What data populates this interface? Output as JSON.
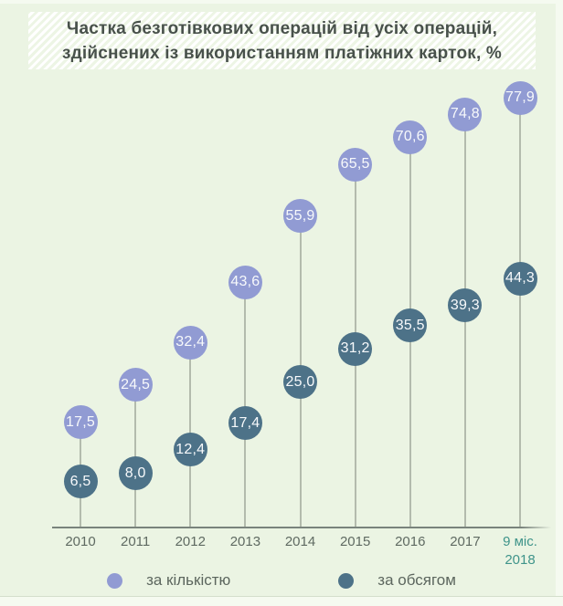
{
  "title": {
    "line1": "Частка безготівкових операцій від усіх операцій,",
    "line2": "здійснених із використанням платіжних карток, %"
  },
  "chart_data": {
    "type": "lollipop",
    "title": "Частка безготівкових операцій від усіх операцій, здійснених із використанням платіжних карток, %",
    "categories": [
      "2010",
      "2011",
      "2012",
      "2013",
      "2014",
      "2015",
      "2016",
      "2017",
      "9 міс. 2018"
    ],
    "x_labels": [
      {
        "lines": [
          "2010"
        ],
        "highlight": false
      },
      {
        "lines": [
          "2011"
        ],
        "highlight": false
      },
      {
        "lines": [
          "2012"
        ],
        "highlight": false
      },
      {
        "lines": [
          "2013"
        ],
        "highlight": false
      },
      {
        "lines": [
          "2014"
        ],
        "highlight": false
      },
      {
        "lines": [
          "2015"
        ],
        "highlight": false
      },
      {
        "lines": [
          "2016"
        ],
        "highlight": false
      },
      {
        "lines": [
          "2017"
        ],
        "highlight": false
      },
      {
        "lines": [
          "9 міс.",
          "2018"
        ],
        "highlight": true
      }
    ],
    "series": [
      {
        "name": "за кількістю",
        "color": "#919bd3",
        "values": [
          17.5,
          24.5,
          32.4,
          43.6,
          55.9,
          65.5,
          70.6,
          74.8,
          77.9
        ],
        "labels": [
          "17,5",
          "24,5",
          "32,4",
          "43,6",
          "55,9",
          "65,5",
          "70,6",
          "74,8",
          "77,9"
        ]
      },
      {
        "name": "за обсягом",
        "color": "#4d7288",
        "values": [
          6.5,
          8.0,
          12.4,
          17.4,
          25.0,
          31.2,
          35.5,
          39.3,
          44.3
        ],
        "labels": [
          "6,5",
          "8,0",
          "12,4",
          "17,4",
          "25,0",
          "31,2",
          "35,5",
          "39,3",
          "44,3"
        ]
      }
    ],
    "ylim": [
      0,
      85
    ],
    "grid": false,
    "decimal_separator": ",",
    "legend_position": "bottom",
    "highlight_label_color": "#3f948a"
  },
  "legend": {
    "items": [
      {
        "label": "за кількістю",
        "color": "#919bd3"
      },
      {
        "label": "за обсягом",
        "color": "#4d7288"
      }
    ]
  },
  "colors": {
    "background": "#ebf4e3",
    "series_quantity": "#919bd3",
    "series_volume": "#4d7288",
    "stem": "#b3bbad",
    "axis": "#79837c",
    "title_text": "#48514b",
    "x_label": "#5f6a62",
    "x_label_highlight": "#3f948a"
  }
}
